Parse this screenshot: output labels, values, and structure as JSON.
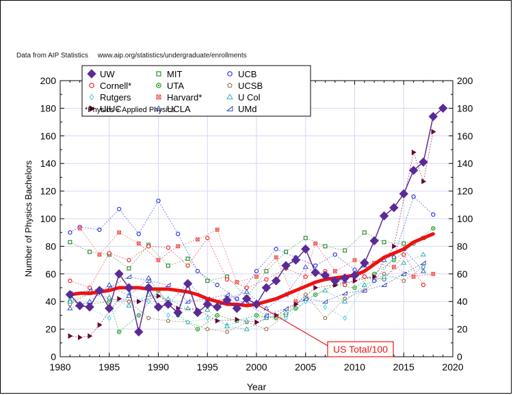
{
  "source_note": "Data from AIP Statistics     www.aip.org/statistics/undergraduate/enrollments",
  "chart_data": {
    "type": "line",
    "title": "",
    "xlabel": "Year",
    "ylabel": "Number of Physics Bachelors",
    "xlim": [
      1980,
      2020
    ],
    "ylim": [
      0,
      200
    ],
    "xticks": [
      1980,
      1985,
      1990,
      1995,
      2000,
      2005,
      2010,
      2015,
      2020
    ],
    "yticks": [
      0,
      20,
      40,
      60,
      80,
      100,
      120,
      140,
      160,
      180,
      200
    ],
    "grid": true,
    "legend_placement": "top-left",
    "legend_note": "*Physics + Applied Physics",
    "annotation": {
      "text": "US Total/100",
      "target_year": 2000,
      "target_value": 38
    },
    "series": [
      {
        "name": "UW",
        "marker": "diamond",
        "color": "#5b2a96",
        "x": [
          1981,
          1982,
          1983,
          1984,
          1985,
          1986,
          1987,
          1988,
          1989,
          1990,
          1991,
          1992,
          1993,
          1994,
          1995,
          1996,
          1997,
          1998,
          1999,
          2000,
          2001,
          2002,
          2003,
          2004,
          2005,
          2006,
          2007,
          2008,
          2009,
          2010,
          2011,
          2012,
          2013,
          2014,
          2015,
          2016,
          2017,
          2018,
          2019
        ],
        "y": [
          45,
          37,
          36,
          48,
          35,
          60,
          50,
          18,
          50,
          36,
          38,
          32,
          53,
          32,
          38,
          36,
          41,
          35,
          42,
          38,
          50,
          55,
          66,
          70,
          78,
          61,
          59,
          55,
          57,
          59,
          68,
          84,
          102,
          108,
          118,
          135,
          141,
          174,
          180
        ]
      },
      {
        "name": "MIT",
        "marker": "square-open",
        "color": "#2e8b2e",
        "x": [
          1981,
          1983,
          1985,
          1987,
          1989,
          1991,
          1993,
          1995,
          1997,
          1999,
          2001,
          2003,
          2005,
          2007,
          2009,
          2011,
          2013,
          2015,
          2017
        ],
        "y": [
          83,
          76,
          74,
          64,
          81,
          66,
          71,
          55,
          58,
          43,
          62,
          76,
          86,
          80,
          77,
          90,
          83,
          82,
          86
        ]
      },
      {
        "name": "UCB",
        "marker": "circle-open",
        "color": "#2233dd",
        "x": [
          1981,
          1982,
          1984,
          1986,
          1988,
          1990,
          1992,
          1994,
          1996,
          1998,
          2000,
          2002,
          2004,
          2006,
          2008,
          2010,
          2012,
          2014,
          2016,
          2018
        ],
        "y": [
          90,
          94,
          92,
          107,
          89,
          113,
          89,
          62,
          52,
          42,
          62,
          78,
          72,
          66,
          74,
          63,
          55,
          72,
          116,
          103
        ]
      },
      {
        "name": "Cornell*",
        "marker": "circle-open",
        "color": "#ee2222",
        "x": [
          1981,
          1983,
          1985,
          1987,
          1989,
          1991,
          1993,
          1995,
          1997,
          1999,
          2001,
          2003,
          2005,
          2007,
          2009,
          2011,
          2013,
          2015,
          2017
        ],
        "y": [
          55,
          50,
          75,
          70,
          80,
          79,
          66,
          86,
          56,
          50,
          56,
          64,
          58,
          62,
          52,
          58,
          56,
          74,
          52
        ]
      },
      {
        "name": "UTA",
        "marker": "circle-dot",
        "color": "#119911",
        "x": [
          1981,
          1983,
          1985,
          1986,
          1988,
          1990,
          1992,
          1994,
          1996,
          1998,
          2000,
          2002,
          2004,
          2006,
          2008,
          2010,
          2012,
          2014,
          2016,
          2018
        ],
        "y": [
          40,
          38,
          40,
          18,
          30,
          48,
          30,
          20,
          30,
          26,
          30,
          28,
          35,
          45,
          52,
          50,
          60,
          70,
          82,
          93
        ]
      },
      {
        "name": "UCSB",
        "marker": "pentagon-open",
        "color": "#8a6a3a",
        "x": [
          1981,
          1983,
          1985,
          1987,
          1989,
          1991,
          1993,
          1995,
          1997,
          1999,
          2001,
          2003,
          2005,
          2007,
          2009,
          2011,
          2013,
          2015,
          2017
        ],
        "y": [
          38,
          46,
          42,
          40,
          28,
          26,
          25,
          20,
          18,
          25,
          20,
          30,
          45,
          28,
          42,
          48,
          60,
          55,
          65
        ]
      },
      {
        "name": "Rutgers",
        "marker": "diamond-open",
        "color": "#44ccdd",
        "x": [
          1981,
          1983,
          1985,
          1987,
          1989,
          1991,
          1993,
          1995,
          1997,
          1999,
          2001,
          2003,
          2005,
          2007,
          2009,
          2011,
          2013,
          2015,
          2017
        ],
        "y": [
          42,
          35,
          28,
          45,
          40,
          30,
          25,
          28,
          23,
          26,
          30,
          28,
          40,
          36,
          28,
          52,
          56,
          60,
          65
        ]
      },
      {
        "name": "Harvard*",
        "marker": "square-x",
        "color": "#ee4444",
        "x": [
          1982,
          1984,
          1986,
          1988,
          1990,
          1992,
          1994,
          1996,
          1998,
          2000,
          2002,
          2004,
          2006,
          2008,
          2010,
          2012,
          2014,
          2016,
          2018
        ],
        "y": [
          93,
          74,
          90,
          82,
          70,
          80,
          85,
          92,
          54,
          58,
          72,
          40,
          82,
          62,
          70,
          68,
          65,
          58,
          60
        ]
      },
      {
        "name": "U Col",
        "marker": "triangle-open",
        "color": "#33aaaa",
        "x": [
          1981,
          1983,
          1985,
          1987,
          1989,
          1991,
          1993,
          1995,
          1997,
          1999,
          2001,
          2003,
          2005,
          2007,
          2009,
          2011,
          2013,
          2015,
          2017
        ],
        "y": [
          40,
          46,
          43,
          37,
          45,
          42,
          35,
          34,
          22,
          20,
          28,
          32,
          42,
          48,
          40,
          52,
          58,
          68,
          74
        ]
      },
      {
        "name": "UIUC",
        "marker": "triangle-right",
        "color": "#660033",
        "x": [
          1981,
          1982,
          1983,
          1984,
          1986,
          1988,
          1990,
          1992,
          1994,
          1996,
          1998,
          2000,
          2002,
          2004,
          2006,
          2008,
          2010,
          2012,
          2014,
          2016,
          2017,
          2018
        ],
        "y": [
          15,
          14,
          15,
          23,
          42,
          40,
          44,
          35,
          34,
          26,
          27,
          25,
          30,
          38,
          50,
          52,
          55,
          58,
          80,
          148,
          127,
          163
        ]
      },
      {
        "name": "UCLA",
        "marker": "triangle-up-open",
        "color": "#3355cc",
        "x": [
          1981,
          1983,
          1985,
          1987,
          1989,
          1991,
          1993,
          1995,
          1997,
          1999,
          2001,
          2003,
          2005,
          2007,
          2009,
          2011,
          2013,
          2015,
          2017
        ],
        "y": [
          35,
          40,
          52,
          44,
          57,
          38,
          54,
          40,
          42,
          47,
          35,
          45,
          65,
          57,
          55,
          66,
          70,
          78,
          62
        ]
      },
      {
        "name": "UMd",
        "marker": "triangle-ne",
        "color": "#3344bb",
        "x": [
          1981,
          1983,
          1985,
          1987,
          1989,
          1991,
          1993,
          1995,
          1997,
          1999,
          2001,
          2003,
          2005,
          2007,
          2009,
          2011,
          2013,
          2015,
          2017
        ],
        "y": [
          46,
          48,
          50,
          58,
          55,
          52,
          40,
          42,
          45,
          38,
          30,
          35,
          42,
          40,
          46,
          48,
          52,
          60,
          68
        ]
      },
      {
        "name": "US Total/100",
        "marker": "none",
        "color": "#ee1111",
        "x": [
          1981,
          1982,
          1983,
          1984,
          1985,
          1986,
          1987,
          1988,
          1989,
          1990,
          1991,
          1992,
          1993,
          1994,
          1995,
          1996,
          1997,
          1998,
          1999,
          2000,
          2001,
          2002,
          2003,
          2004,
          2005,
          2006,
          2007,
          2008,
          2009,
          2010,
          2011,
          2012,
          2013,
          2014,
          2015,
          2016,
          2017,
          2018
        ],
        "y": [
          45,
          46,
          46,
          47,
          48,
          50,
          50,
          50,
          49,
          49,
          49,
          48,
          47,
          45,
          42,
          40,
          38,
          38,
          37,
          38,
          40,
          42,
          45,
          48,
          51,
          54,
          56,
          57,
          58,
          59,
          62,
          67,
          72,
          75,
          78,
          83,
          86,
          89
        ]
      }
    ]
  }
}
